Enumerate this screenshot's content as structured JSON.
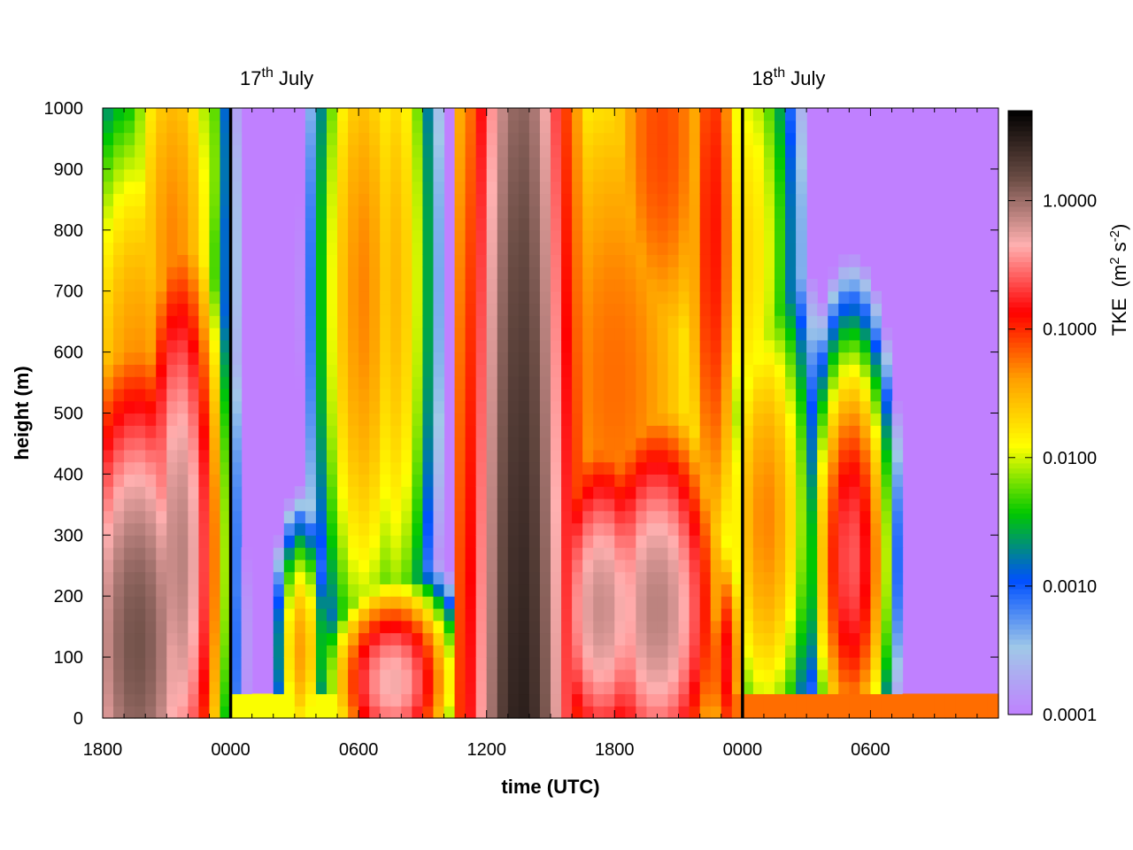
{
  "chart_data": {
    "type": "heatmap",
    "title": "",
    "xlabel": "time (UTC)",
    "ylabel": "height (m)",
    "x_range": [
      -6,
      36
    ],
    "y_range": [
      0,
      1000
    ],
    "x_ticks": [
      {
        "value": -6,
        "label": "1800"
      },
      {
        "value": 0,
        "label": "0000"
      },
      {
        "value": 6,
        "label": "0600"
      },
      {
        "value": 12,
        "label": "1200"
      },
      {
        "value": 18,
        "label": "1800"
      },
      {
        "value": 24,
        "label": "0000"
      },
      {
        "value": 30,
        "label": "0600"
      }
    ],
    "y_ticks": [
      0,
      100,
      200,
      300,
      400,
      500,
      600,
      700,
      800,
      900,
      1000
    ],
    "day_markers": [
      {
        "x": 0,
        "day": "17",
        "sup": "th",
        "month": "July"
      },
      {
        "x": 24,
        "day": "18",
        "sup": "th",
        "month": "July"
      }
    ],
    "colorbar": {
      "label": "TKE",
      "units": "(m",
      "units_sup": "2",
      "units_mid": " s",
      "units_sup2": "-2",
      "units_end": ")",
      "log_range": [
        -4,
        0.7
      ],
      "ticks": [
        {
          "value": 1.0,
          "label": "1.0000"
        },
        {
          "value": 0.1,
          "label": "0.1000"
        },
        {
          "value": 0.01,
          "label": "0.0100"
        },
        {
          "value": 0.001,
          "label": "0.0010"
        },
        {
          "value": 0.0001,
          "label": "0.0001"
        }
      ],
      "colormap": [
        "#c080ff",
        "#a0c8e8",
        "#0050ff",
        "#00c800",
        "#ffff00",
        "#ffa000",
        "#ff0000",
        "#ffb0b0",
        "#6a4c44",
        "#000000"
      ]
    },
    "background_value": 0.0001,
    "time_step_hours": 0.5,
    "height_step_m": 20,
    "features": [
      {
        "kind": "column",
        "t_start": 10.3,
        "t_end": 16.3,
        "center": 13.6,
        "bottom": 0,
        "top": 1000,
        "peak": 3.0,
        "falloff": 0.45
      },
      {
        "kind": "blob",
        "t": 20.0,
        "z": 180,
        "rt": 1.6,
        "rz": 180,
        "peak": 0.8
      },
      {
        "kind": "blob",
        "t": 17.4,
        "z": 180,
        "rt": 1.4,
        "rz": 160,
        "peak": 0.7
      },
      {
        "kind": "blob",
        "t": 18.0,
        "z": 550,
        "rt": 3.0,
        "rz": 420,
        "peak": 0.06
      },
      {
        "kind": "blob",
        "t": 20.2,
        "z": 950,
        "rt": 1.8,
        "rz": 300,
        "peak": 0.08
      },
      {
        "kind": "blob",
        "t": -4.4,
        "z": 120,
        "rt": 1.7,
        "rz": 260,
        "peak": 1.4
      },
      {
        "kind": "blob",
        "t": -2.4,
        "z": 260,
        "rt": 1.0,
        "rz": 300,
        "peak": 0.8
      },
      {
        "kind": "blob",
        "t": -4.4,
        "z": 520,
        "rt": 1.8,
        "rz": 300,
        "peak": 0.05
      },
      {
        "kind": "blob",
        "t": -2.7,
        "z": 760,
        "rt": 1.3,
        "rz": 330,
        "peak": 0.05
      },
      {
        "kind": "blob",
        "t": -1.2,
        "z": 900,
        "rt": 0.7,
        "rz": 250,
        "peak": 0.01
      },
      {
        "kind": "blob",
        "t": 6.2,
        "z": 700,
        "rt": 1.2,
        "rz": 380,
        "peak": 0.05
      },
      {
        "kind": "blob",
        "t": 7.7,
        "z": 720,
        "rt": 1.0,
        "rz": 420,
        "peak": 0.03
      },
      {
        "kind": "blob",
        "t": 3.3,
        "z": 110,
        "rt": 0.6,
        "rz": 110,
        "peak": 0.04
      },
      {
        "kind": "blob",
        "t": 7.6,
        "z": 60,
        "rt": 1.4,
        "rz": 80,
        "peak": 0.5
      },
      {
        "kind": "blob",
        "t": 25.1,
        "z": 330,
        "rt": 1.2,
        "rz": 230,
        "peak": 0.05
      },
      {
        "kind": "blob",
        "t": 23.2,
        "z": 90,
        "rt": 0.5,
        "rz": 120,
        "peak": 0.15
      },
      {
        "kind": "blob",
        "t": 29.1,
        "z": 260,
        "rt": 0.9,
        "rz": 180,
        "peak": 0.25
      },
      {
        "kind": "blob",
        "t": 24.2,
        "z": 760,
        "rt": 1.3,
        "rz": 300,
        "peak": 0.02
      },
      {
        "kind": "blob",
        "t": 22.6,
        "z": 800,
        "rt": 0.8,
        "rz": 400,
        "peak": 0.12
      },
      {
        "kind": "surface",
        "t_start": 0.0,
        "t_end": 6.8,
        "depth": 30,
        "peak": 0.012
      },
      {
        "kind": "surface",
        "t_start": 23.0,
        "t_end": 36.0,
        "depth": 30,
        "peak": 0.06
      }
    ]
  }
}
